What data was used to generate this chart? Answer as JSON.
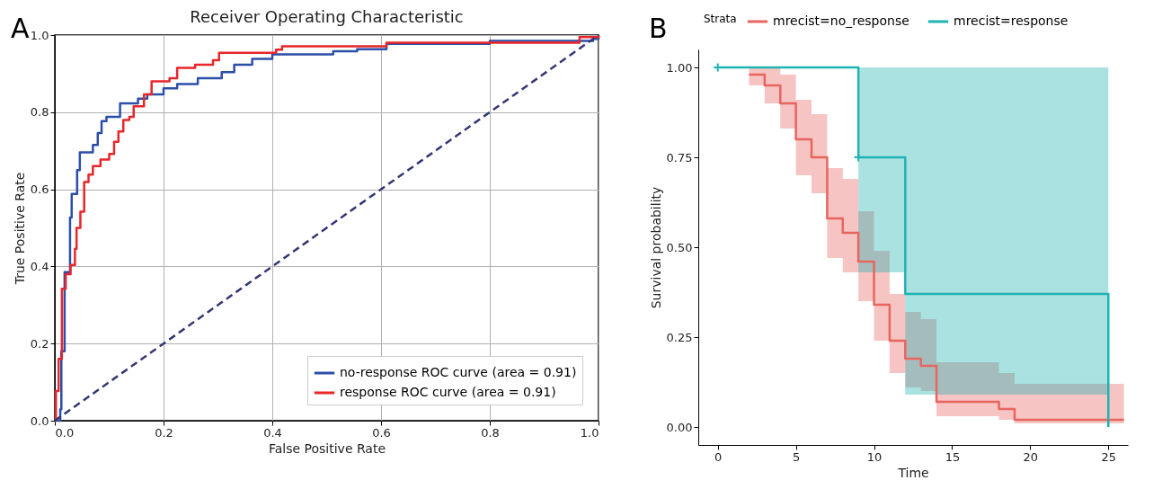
{
  "chart_data": [
    {
      "type": "step",
      "title": "Receiver Operating Characteristic",
      "xlabel": "False Positive Rate",
      "ylabel": "True Positive Rate",
      "annotations": [
        "A"
      ],
      "xlim": [
        0,
        1
      ],
      "ylim": [
        0,
        1
      ],
      "xticks": [
        {
          "value": 0,
          "label": "0.0"
        },
        0.2,
        0.4,
        0.6,
        0.8,
        {
          "value": 1,
          "label": "1.0"
        }
      ],
      "yticks": [
        {
          "value": 0,
          "label": "0.0"
        },
        0.2,
        0.4,
        0.6,
        0.8,
        {
          "value": 1,
          "label": "1.0"
        }
      ],
      "grid": true,
      "legend": "bottom right",
      "series": [
        {
          "name": "no-response ROC curve (area = 0.91)",
          "color": "#2b4fa8",
          "x": [
            0,
            0.01,
            0.012,
            0.018,
            0.028,
            0.031,
            0.041,
            0.046,
            0.07,
            0.079,
            0.086,
            0.095,
            0.12,
            0.153,
            0.17,
            0.2,
            0.225,
            0.263,
            0.307,
            0.33,
            0.363,
            0.4,
            0.512,
            0.556,
            0.61,
            0.8,
            0.99,
            1
          ],
          "values": [
            0,
            0.03,
            0.18,
            0.385,
            0.527,
            0.588,
            0.65,
            0.696,
            0.715,
            0.746,
            0.777,
            0.788,
            0.823,
            0.835,
            0.846,
            0.862,
            0.873,
            0.888,
            0.904,
            0.923,
            0.938,
            0.95,
            0.958,
            0.963,
            0.977,
            0.985,
            0.99,
            1
          ]
        },
        {
          "name": "response ROC curve (area = 0.91)",
          "color": "#e8262a",
          "x": [
            0,
            0.002,
            0.007,
            0.013,
            0.02,
            0.029,
            0.037,
            0.04,
            0.047,
            0.054,
            0.062,
            0.07,
            0.084,
            0.1,
            0.109,
            0.117,
            0.126,
            0.137,
            0.145,
            0.164,
            0.178,
            0.211,
            0.225,
            0.258,
            0.291,
            0.302,
            0.407,
            0.418,
            0.61,
            0.965,
            1
          ],
          "values": [
            0,
            0.077,
            0.16,
            0.342,
            0.38,
            0.404,
            0.446,
            0.5,
            0.542,
            0.619,
            0.638,
            0.66,
            0.677,
            0.692,
            0.723,
            0.75,
            0.78,
            0.788,
            0.815,
            0.846,
            0.88,
            0.888,
            0.915,
            0.923,
            0.935,
            0.954,
            0.962,
            0.971,
            0.98,
            0.995,
            1
          ]
        },
        {
          "type": "line",
          "color": "#343672",
          "line_style": "dashed",
          "x": [
            0,
            1
          ],
          "values": [
            0,
            1
          ]
        }
      ]
    },
    {
      "type": "step",
      "xlabel": "Time",
      "ylabel": "Survival probability",
      "annotations": [
        "B"
      ],
      "legend_title": "Strata",
      "legend": "top",
      "xlim": [
        -1.25,
        26.25
      ],
      "ylim": [
        -0.05,
        1.05
      ],
      "xticks": [
        0,
        5,
        10,
        15,
        20,
        25
      ],
      "yticks": [
        {
          "value": 0,
          "label": "0.00"
        },
        {
          "value": 0.25,
          "label": "0.25"
        },
        {
          "value": 0.5,
          "label": "0.50"
        },
        {
          "value": 0.75,
          "label": "0.75"
        },
        {
          "value": 1,
          "label": "1.00"
        }
      ],
      "series": [
        {
          "name": "mrecist=no_response",
          "color": "#e8655f",
          "x": [
            2,
            3,
            4,
            5,
            6,
            7,
            8,
            9,
            10,
            11,
            12,
            13,
            14,
            18,
            19,
            26
          ],
          "values": [
            0.98,
            0.95,
            0.9,
            0.8,
            0.75,
            0.58,
            0.54,
            0.46,
            0.34,
            0.24,
            0.19,
            0.17,
            0.07,
            0.05,
            0.02,
            0.02
          ],
          "lower": [
            0.95,
            0.9,
            0.83,
            0.7,
            0.65,
            0.47,
            0.43,
            0.35,
            0.24,
            0.15,
            0.11,
            0.1,
            0.03,
            0.02,
            0.01,
            0.01
          ],
          "upper": [
            1,
            1,
            0.98,
            0.91,
            0.87,
            0.72,
            0.69,
            0.6,
            0.49,
            0.37,
            0.32,
            0.3,
            0.18,
            0.15,
            0.12,
            0.12
          ]
        },
        {
          "name": "mrecist=response",
          "color": "#1fb3b3",
          "x": [
            0,
            9,
            12,
            25
          ],
          "values": [
            1,
            0.75,
            0.37,
            0
          ],
          "lower": [
            1,
            0.43,
            0.09,
            0.09
          ],
          "upper": [
            1,
            1,
            1,
            1
          ]
        },
        {
          "type": "scatter",
          "marker": "cross",
          "color": "#1fb3b3",
          "x": [
            0,
            9
          ],
          "values": [
            1,
            0.75
          ]
        }
      ]
    }
  ]
}
